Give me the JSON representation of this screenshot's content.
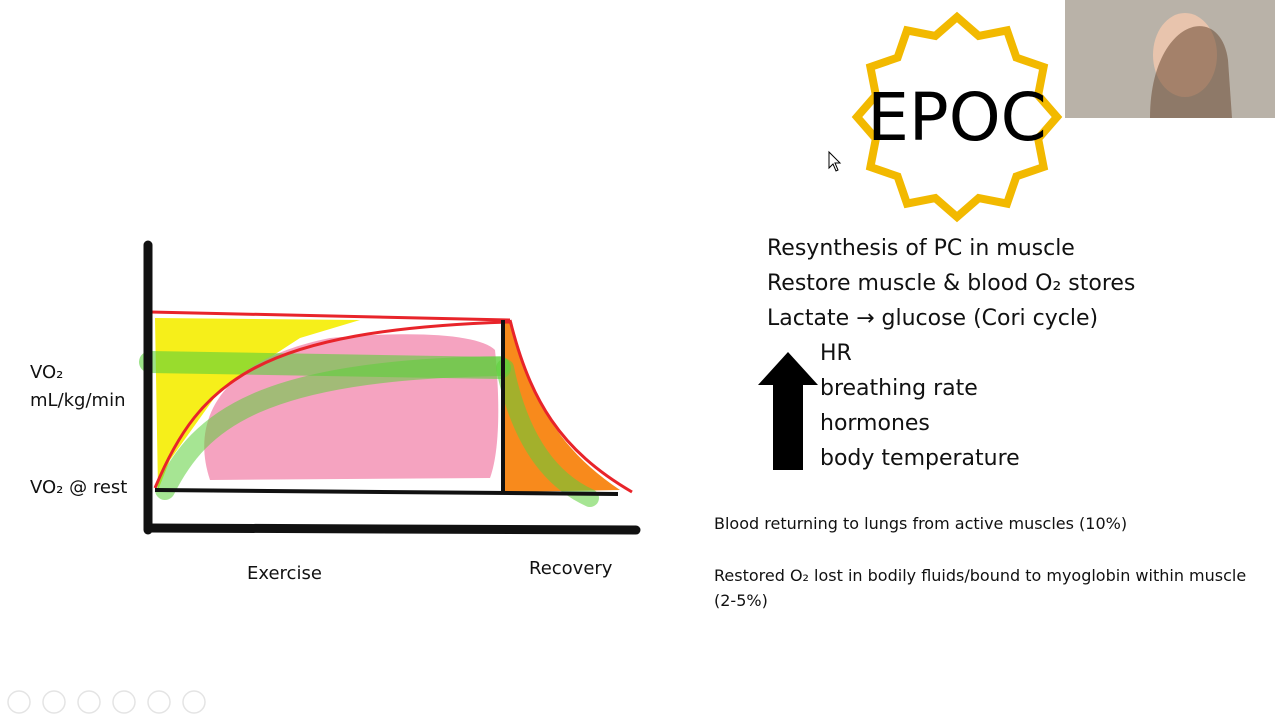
{
  "badge": {
    "title": "EPOC"
  },
  "graph": {
    "y_label": [
      "VO₂",
      "mL/kg/min"
    ],
    "rest_label": "VO₂ @ rest",
    "x_labels": [
      "Exercise",
      "Recovery"
    ]
  },
  "processes": [
    "Resynthesis of PC in muscle",
    "Restore muscle & blood O₂ stores",
    "Lactate → glucose (Cori cycle)"
  ],
  "increases": [
    "HR",
    "breathing rate",
    "hormones",
    "body temperature"
  ],
  "notes": [
    "Blood returning to lungs from active muscles (10%)",
    "Restored O₂ lost in bodily fluids/bound to myoglobin within muscle (2-5%)"
  ]
}
